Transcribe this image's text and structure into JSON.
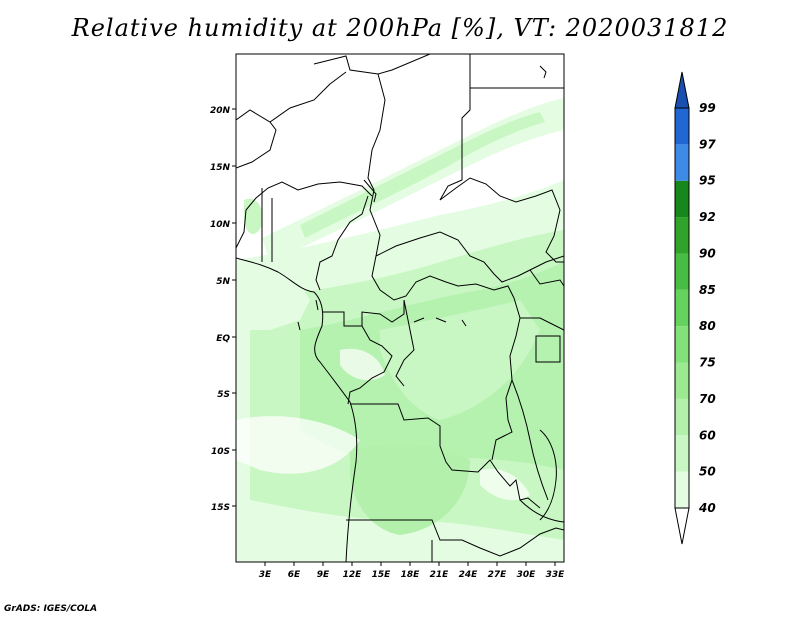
{
  "title": "Relative humidity at 200hPa [%], VT: 2020031812",
  "credit": "GrADS: IGES/COLA",
  "map": {
    "lon_range": [
      0,
      34
    ],
    "lat_range": [
      -20,
      25
    ],
    "lon_ticks": [
      "3E",
      "6E",
      "9E",
      "12E",
      "15E",
      "18E",
      "21E",
      "24E",
      "27E",
      "30E",
      "33E"
    ],
    "lon_tick_values": [
      3,
      6,
      9,
      12,
      15,
      18,
      21,
      24,
      27,
      30,
      33
    ],
    "lat_ticks": [
      "20N",
      "15N",
      "10N",
      "5N",
      "EQ",
      "5S",
      "10S",
      "15S"
    ],
    "lat_tick_values": [
      20,
      15,
      10,
      5,
      0,
      -5,
      -10,
      -15
    ]
  },
  "colorbar": {
    "levels": [
      "40",
      "50",
      "60",
      "70",
      "75",
      "80",
      "85",
      "90",
      "92",
      "95",
      "97",
      "99"
    ],
    "colors": [
      "#ffffff",
      "#e4fde2",
      "#c9f7c4",
      "#b2f0ab",
      "#9be991",
      "#83e179",
      "#64d25c",
      "#47be43",
      "#2fa32a",
      "#16871a",
      "#3e8ae7",
      "#2067d2",
      "#1a4fb2"
    ]
  }
}
